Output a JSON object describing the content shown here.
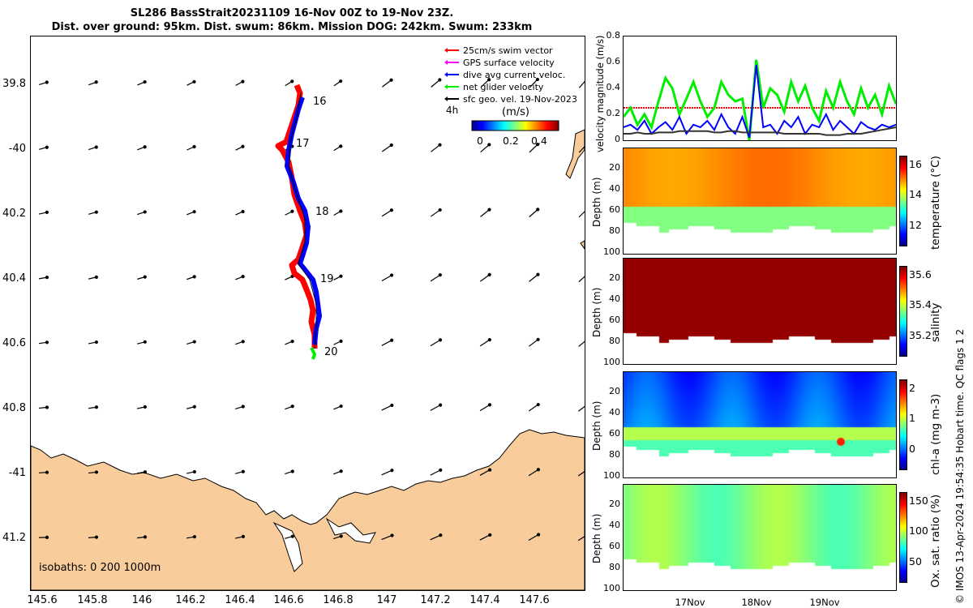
{
  "title_line1": "SL286 BassStrait20231109 16-Nov 00Z to 19-Nov 23Z.",
  "title_line2": "Dist. over ground: 95km. Dist. swum: 86km. Mission DOG: 242km. Swum: 233km",
  "map": {
    "lat_ticks": [
      "39.8",
      "-40",
      "40.2",
      "40.4",
      "40.6",
      "40.8",
      "-41",
      "41.2"
    ],
    "lon_ticks": [
      "145.6",
      "145.8",
      "146",
      "146.2",
      "146.4",
      "146.6",
      "146.8",
      "147",
      "147.2",
      "147.4",
      "147.6"
    ],
    "day_labels": [
      "16",
      "17",
      "18",
      "19",
      "20"
    ],
    "legend": [
      {
        "label": "25cm/s swim vector",
        "color": "#ff0000"
      },
      {
        "label": "GPS surface velocity",
        "color": "#ff00ff"
      },
      {
        "label": "dive avg current veloc.",
        "color": "#0000ff"
      },
      {
        "label": "net glider velocity",
        "color": "#00ff00"
      },
      {
        "label": "sfc geo. vel. 19-Nov-2023",
        "color": "#000000"
      }
    ],
    "legend_extra": "4h",
    "colorbar_title": "(m/s)",
    "colorbar_ticks": [
      "0",
      "0.2",
      "0.4"
    ],
    "isobaths": "isobaths: 0   200  1000m",
    "land_color": "#f9cc9b"
  },
  "chart_data": [
    {
      "type": "line",
      "ylabel": "velocity magnitude (m/s)",
      "ylim": [
        0,
        0.8
      ],
      "yticks": [
        "0",
        "0.2",
        "0.4",
        "0.6",
        "0.8"
      ],
      "series": [
        {
          "color": "#ff0000",
          "values": [
            0.25,
            0.25,
            0.25,
            0.25,
            0.25,
            0.25,
            0.25,
            0.25,
            0.25,
            0.25,
            0.25,
            0.25,
            0.25,
            0.25,
            0.25,
            0.25,
            0.25,
            0.25,
            0.25,
            0.25,
            0.25,
            0.25,
            0.25,
            0.25,
            0.25,
            0.25,
            0.25,
            0.25,
            0.25,
            0.25,
            0.25,
            0.25,
            0.25,
            0.25,
            0.25,
            0.25,
            0.25,
            0.25,
            0.25,
            0.25
          ]
        },
        {
          "color": "#00ee00",
          "values": [
            0.18,
            0.25,
            0.12,
            0.2,
            0.1,
            0.3,
            0.48,
            0.4,
            0.2,
            0.32,
            0.45,
            0.3,
            0.18,
            0.25,
            0.45,
            0.35,
            0.3,
            0.32,
            0.0,
            0.62,
            0.25,
            0.4,
            0.35,
            0.22,
            0.45,
            0.3,
            0.42,
            0.25,
            0.15,
            0.38,
            0.25,
            0.45,
            0.3,
            0.2,
            0.4,
            0.25,
            0.35,
            0.2,
            0.42,
            0.28
          ]
        },
        {
          "color": "#0000ff",
          "values": [
            0.1,
            0.12,
            0.08,
            0.15,
            0.05,
            0.1,
            0.14,
            0.08,
            0.18,
            0.05,
            0.12,
            0.1,
            0.15,
            0.08,
            0.2,
            0.1,
            0.05,
            0.18,
            0.02,
            0.58,
            0.1,
            0.12,
            0.05,
            0.15,
            0.1,
            0.18,
            0.05,
            0.12,
            0.1,
            0.2,
            0.08,
            0.15,
            0.1,
            0.05,
            0.14,
            0.1,
            0.08,
            0.12,
            0.1,
            0.12
          ]
        },
        {
          "color": "#333333",
          "values": [
            0.05,
            0.05,
            0.06,
            0.05,
            0.05,
            0.06,
            0.06,
            0.06,
            0.07,
            0.07,
            0.07,
            0.07,
            0.07,
            0.06,
            0.06,
            0.07,
            0.07,
            0.06,
            0.06,
            0.06,
            0.06,
            0.06,
            0.06,
            0.05,
            0.05,
            0.05,
            0.05,
            0.05,
            0.05,
            0.04,
            0.04,
            0.04,
            0.05,
            0.05,
            0.05,
            0.06,
            0.07,
            0.08,
            0.09,
            0.1
          ]
        }
      ]
    },
    {
      "type": "heatmap",
      "variable": "temperature (°C)",
      "ylabel": "Depth (m)",
      "yticks": [
        "20",
        "40",
        "60",
        "80",
        "100"
      ],
      "ylim": [
        0,
        100
      ],
      "colorbar_ticks": [
        "12",
        "14",
        "16"
      ],
      "clim": [
        11.5,
        17
      ]
    },
    {
      "type": "heatmap",
      "variable": "salinity",
      "ylabel": "Depth (m)",
      "yticks": [
        "20",
        "40",
        "60",
        "80",
        "100"
      ],
      "ylim": [
        0,
        100
      ],
      "colorbar_ticks": [
        "35.2",
        "35.4",
        "35.6"
      ],
      "clim": [
        35.1,
        35.7
      ]
    },
    {
      "type": "heatmap",
      "variable": "chl-a (mg m-3)",
      "ylabel": "Depth (m)",
      "yticks": [
        "20",
        "40",
        "60",
        "80",
        "100"
      ],
      "ylim": [
        0,
        100
      ],
      "colorbar_ticks": [
        "0",
        "1",
        "2"
      ],
      "clim": [
        0,
        2
      ]
    },
    {
      "type": "heatmap",
      "variable": "Ox. sat. ratio (%)",
      "ylabel": "Depth (m)",
      "yticks": [
        "20",
        "40",
        "60",
        "80",
        "100"
      ],
      "ylim": [
        0,
        100
      ],
      "colorbar_ticks": [
        "50",
        "100",
        "150"
      ],
      "clim": [
        25,
        175
      ]
    }
  ],
  "time_ticks": [
    "17Nov",
    "18Nov",
    "19Nov"
  ],
  "footer_credit": "© IMOS 13-Apr-2024 19:54:35 Hobart time. QC flags 1  2"
}
